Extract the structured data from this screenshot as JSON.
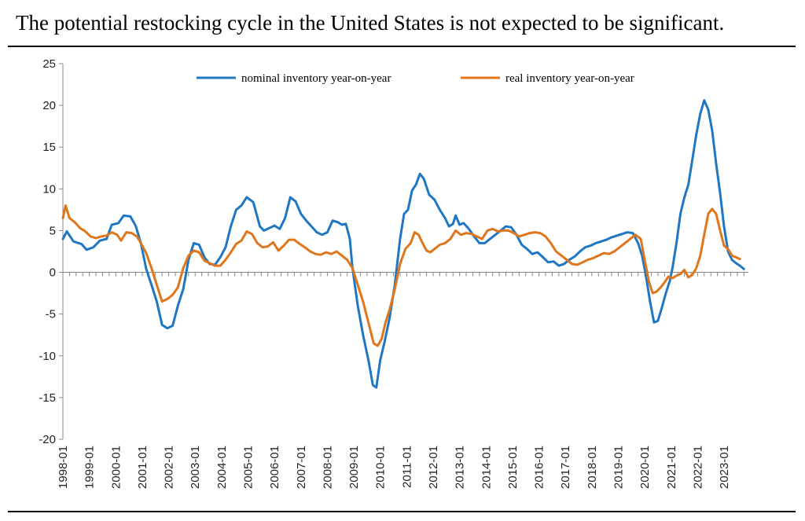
{
  "title": "The potential restocking cycle in the United States is not expected to be significant.",
  "chart_data": {
    "type": "line",
    "title": "",
    "xlabel": "",
    "ylabel": "",
    "ylim": [
      -20,
      25
    ],
    "yticks": [
      -20,
      -15,
      -10,
      -5,
      0,
      5,
      10,
      15,
      20,
      25
    ],
    "xlim": [
      1998.0,
      2023.92
    ],
    "xticks": [
      "1998-01",
      "1999-01",
      "2000-01",
      "2001-01",
      "2002-01",
      "2003-01",
      "2004-01",
      "2005-01",
      "2006-01",
      "2007-01",
      "2008-01",
      "2009-01",
      "2010-01",
      "2011-01",
      "2012-01",
      "2013-01",
      "2014-01",
      "2015-01",
      "2016-01",
      "2017-01",
      "2018-01",
      "2019-01",
      "2020-01",
      "2021-01",
      "2022-01",
      "2023-01"
    ],
    "legend_position": "top-center",
    "grid": false,
    "series": [
      {
        "name": "nominal inventory year-on-year",
        "color": "#1f77c4",
        "points": [
          [
            1998.0,
            4.0
          ],
          [
            1998.15,
            4.9
          ],
          [
            1998.4,
            3.7
          ],
          [
            1998.7,
            3.4
          ],
          [
            1998.9,
            2.7
          ],
          [
            1999.15,
            3.0
          ],
          [
            1999.4,
            3.8
          ],
          [
            1999.65,
            4.0
          ],
          [
            1999.85,
            5.7
          ],
          [
            2000.1,
            5.9
          ],
          [
            2000.3,
            6.8
          ],
          [
            2000.55,
            6.7
          ],
          [
            2000.75,
            5.6
          ],
          [
            2000.95,
            3.5
          ],
          [
            2001.15,
            0.4
          ],
          [
            2001.35,
            -1.5
          ],
          [
            2001.55,
            -3.5
          ],
          [
            2001.75,
            -6.3
          ],
          [
            2001.95,
            -6.7
          ],
          [
            2002.15,
            -6.4
          ],
          [
            2002.35,
            -4.0
          ],
          [
            2002.55,
            -2.0
          ],
          [
            2002.75,
            1.5
          ],
          [
            2002.95,
            3.5
          ],
          [
            2003.15,
            3.3
          ],
          [
            2003.35,
            1.8
          ],
          [
            2003.55,
            1.0
          ],
          [
            2003.75,
            0.9
          ],
          [
            2003.95,
            1.8
          ],
          [
            2004.15,
            3.0
          ],
          [
            2004.35,
            5.5
          ],
          [
            2004.55,
            7.5
          ],
          [
            2004.75,
            8.0
          ],
          [
            2004.95,
            9.0
          ],
          [
            2005.2,
            8.4
          ],
          [
            2005.45,
            5.5
          ],
          [
            2005.6,
            5.0
          ],
          [
            2005.8,
            5.3
          ],
          [
            2006.0,
            5.6
          ],
          [
            2006.2,
            5.2
          ],
          [
            2006.4,
            6.5
          ],
          [
            2006.6,
            9.0
          ],
          [
            2006.8,
            8.5
          ],
          [
            2007.0,
            7.0
          ],
          [
            2007.2,
            6.2
          ],
          [
            2007.4,
            5.5
          ],
          [
            2007.6,
            4.8
          ],
          [
            2007.8,
            4.5
          ],
          [
            2008.0,
            4.8
          ],
          [
            2008.2,
            6.2
          ],
          [
            2008.4,
            6.0
          ],
          [
            2008.55,
            5.7
          ],
          [
            2008.7,
            5.8
          ],
          [
            2008.85,
            4.0
          ],
          [
            2008.95,
            0.5
          ],
          [
            2009.15,
            -4.0
          ],
          [
            2009.35,
            -7.5
          ],
          [
            2009.55,
            -10.5
          ],
          [
            2009.72,
            -13.5
          ],
          [
            2009.85,
            -13.8
          ],
          [
            2010.0,
            -10.5
          ],
          [
            2010.15,
            -8.5
          ],
          [
            2010.35,
            -5.5
          ],
          [
            2010.55,
            -1.5
          ],
          [
            2010.75,
            4.0
          ],
          [
            2010.9,
            7.0
          ],
          [
            2011.05,
            7.5
          ],
          [
            2011.2,
            9.8
          ],
          [
            2011.35,
            10.5
          ],
          [
            2011.5,
            11.8
          ],
          [
            2011.65,
            11.2
          ],
          [
            2011.85,
            9.3
          ],
          [
            2012.05,
            8.7
          ],
          [
            2012.25,
            7.5
          ],
          [
            2012.45,
            6.5
          ],
          [
            2012.6,
            5.5
          ],
          [
            2012.75,
            5.8
          ],
          [
            2012.85,
            6.8
          ],
          [
            2013.0,
            5.7
          ],
          [
            2013.15,
            5.9
          ],
          [
            2013.35,
            5.2
          ],
          [
            2013.55,
            4.3
          ],
          [
            2013.75,
            3.5
          ],
          [
            2013.95,
            3.5
          ],
          [
            2014.15,
            4.0
          ],
          [
            2014.35,
            4.5
          ],
          [
            2014.55,
            5.0
          ],
          [
            2014.75,
            5.5
          ],
          [
            2014.95,
            5.4
          ],
          [
            2015.15,
            4.5
          ],
          [
            2015.35,
            3.3
          ],
          [
            2015.55,
            2.8
          ],
          [
            2015.75,
            2.2
          ],
          [
            2015.95,
            2.4
          ],
          [
            2016.15,
            1.8
          ],
          [
            2016.35,
            1.2
          ],
          [
            2016.55,
            1.3
          ],
          [
            2016.75,
            0.8
          ],
          [
            2016.95,
            1.0
          ],
          [
            2017.15,
            1.5
          ],
          [
            2017.35,
            1.9
          ],
          [
            2017.55,
            2.5
          ],
          [
            2017.75,
            3.0
          ],
          [
            2017.95,
            3.2
          ],
          [
            2018.15,
            3.5
          ],
          [
            2018.35,
            3.7
          ],
          [
            2018.55,
            3.9
          ],
          [
            2018.75,
            4.2
          ],
          [
            2018.95,
            4.4
          ],
          [
            2019.15,
            4.6
          ],
          [
            2019.35,
            4.8
          ],
          [
            2019.55,
            4.7
          ],
          [
            2019.75,
            3.5
          ],
          [
            2019.9,
            2.0
          ],
          [
            2020.05,
            -0.5
          ],
          [
            2020.2,
            -3.5
          ],
          [
            2020.35,
            -6.0
          ],
          [
            2020.5,
            -5.8
          ],
          [
            2020.65,
            -4.2
          ],
          [
            2020.8,
            -2.5
          ],
          [
            2020.95,
            -1.0
          ],
          [
            2021.05,
            0.5
          ],
          [
            2021.2,
            3.5
          ],
          [
            2021.35,
            7.0
          ],
          [
            2021.5,
            9.0
          ],
          [
            2021.65,
            10.5
          ],
          [
            2021.8,
            13.5
          ],
          [
            2021.95,
            16.5
          ],
          [
            2022.1,
            19.0
          ],
          [
            2022.25,
            20.6
          ],
          [
            2022.4,
            19.5
          ],
          [
            2022.55,
            17.0
          ],
          [
            2022.7,
            13.0
          ],
          [
            2022.85,
            9.5
          ],
          [
            2023.0,
            5.5
          ],
          [
            2023.15,
            2.5
          ],
          [
            2023.3,
            1.5
          ],
          [
            2023.45,
            1.1
          ],
          [
            2023.6,
            0.8
          ],
          [
            2023.75,
            0.4
          ]
        ]
      },
      {
        "name": "real inventory year-on-year",
        "color": "#e0761c",
        "points": [
          [
            1998.0,
            6.5
          ],
          [
            1998.1,
            8.0
          ],
          [
            1998.25,
            6.5
          ],
          [
            1998.45,
            6.0
          ],
          [
            1998.65,
            5.3
          ],
          [
            1998.85,
            4.9
          ],
          [
            1999.05,
            4.3
          ],
          [
            1999.25,
            4.1
          ],
          [
            1999.45,
            4.3
          ],
          [
            1999.65,
            4.4
          ],
          [
            1999.85,
            4.8
          ],
          [
            2000.05,
            4.5
          ],
          [
            2000.2,
            3.8
          ],
          [
            2000.4,
            4.8
          ],
          [
            2000.6,
            4.7
          ],
          [
            2000.8,
            4.3
          ],
          [
            2000.95,
            3.5
          ],
          [
            2001.15,
            2.3
          ],
          [
            2001.35,
            0.5
          ],
          [
            2001.55,
            -1.5
          ],
          [
            2001.75,
            -3.5
          ],
          [
            2001.95,
            -3.2
          ],
          [
            2002.15,
            -2.7
          ],
          [
            2002.35,
            -1.8
          ],
          [
            2002.55,
            0.5
          ],
          [
            2002.75,
            2.0
          ],
          [
            2002.95,
            2.6
          ],
          [
            2003.15,
            2.4
          ],
          [
            2003.35,
            1.4
          ],
          [
            2003.55,
            1.1
          ],
          [
            2003.75,
            0.8
          ],
          [
            2003.95,
            0.8
          ],
          [
            2004.15,
            1.5
          ],
          [
            2004.35,
            2.4
          ],
          [
            2004.55,
            3.4
          ],
          [
            2004.75,
            3.8
          ],
          [
            2004.95,
            4.9
          ],
          [
            2005.15,
            4.6
          ],
          [
            2005.35,
            3.5
          ],
          [
            2005.55,
            3.0
          ],
          [
            2005.75,
            3.1
          ],
          [
            2005.95,
            3.6
          ],
          [
            2006.15,
            2.6
          ],
          [
            2006.35,
            3.2
          ],
          [
            2006.55,
            3.9
          ],
          [
            2006.75,
            3.9
          ],
          [
            2006.95,
            3.4
          ],
          [
            2007.15,
            3.0
          ],
          [
            2007.35,
            2.5
          ],
          [
            2007.55,
            2.2
          ],
          [
            2007.75,
            2.1
          ],
          [
            2007.95,
            2.4
          ],
          [
            2008.15,
            2.2
          ],
          [
            2008.35,
            2.5
          ],
          [
            2008.55,
            2.0
          ],
          [
            2008.75,
            1.5
          ],
          [
            2008.95,
            0.5
          ],
          [
            2009.15,
            -1.5
          ],
          [
            2009.35,
            -3.5
          ],
          [
            2009.55,
            -6.0
          ],
          [
            2009.75,
            -8.5
          ],
          [
            2009.9,
            -8.8
          ],
          [
            2010.05,
            -8.0
          ],
          [
            2010.2,
            -6.0
          ],
          [
            2010.35,
            -4.5
          ],
          [
            2010.55,
            -2.0
          ],
          [
            2010.75,
            1.0
          ],
          [
            2010.95,
            2.8
          ],
          [
            2011.15,
            3.5
          ],
          [
            2011.3,
            4.8
          ],
          [
            2011.45,
            4.5
          ],
          [
            2011.6,
            3.5
          ],
          [
            2011.75,
            2.6
          ],
          [
            2011.9,
            2.4
          ],
          [
            2012.05,
            2.8
          ],
          [
            2012.25,
            3.3
          ],
          [
            2012.45,
            3.5
          ],
          [
            2012.65,
            4.0
          ],
          [
            2012.85,
            5.0
          ],
          [
            2013.05,
            4.5
          ],
          [
            2013.25,
            4.7
          ],
          [
            2013.45,
            4.6
          ],
          [
            2013.65,
            4.3
          ],
          [
            2013.85,
            4.0
          ],
          [
            2014.05,
            5.0
          ],
          [
            2014.25,
            5.2
          ],
          [
            2014.45,
            4.9
          ],
          [
            2014.65,
            5.0
          ],
          [
            2014.85,
            5.0
          ],
          [
            2015.05,
            4.7
          ],
          [
            2015.25,
            4.3
          ],
          [
            2015.45,
            4.5
          ],
          [
            2015.65,
            4.7
          ],
          [
            2015.85,
            4.8
          ],
          [
            2016.05,
            4.7
          ],
          [
            2016.25,
            4.3
          ],
          [
            2016.45,
            3.5
          ],
          [
            2016.65,
            2.5
          ],
          [
            2016.85,
            2.0
          ],
          [
            2017.05,
            1.5
          ],
          [
            2017.25,
            1.0
          ],
          [
            2017.45,
            0.9
          ],
          [
            2017.65,
            1.2
          ],
          [
            2017.85,
            1.5
          ],
          [
            2018.05,
            1.7
          ],
          [
            2018.25,
            2.0
          ],
          [
            2018.45,
            2.3
          ],
          [
            2018.65,
            2.2
          ],
          [
            2018.85,
            2.5
          ],
          [
            2019.05,
            3.0
          ],
          [
            2019.25,
            3.5
          ],
          [
            2019.45,
            4.0
          ],
          [
            2019.65,
            4.5
          ],
          [
            2019.85,
            4.0
          ],
          [
            2020.0,
            1.5
          ],
          [
            2020.15,
            -1.0
          ],
          [
            2020.3,
            -2.5
          ],
          [
            2020.45,
            -2.3
          ],
          [
            2020.6,
            -1.8
          ],
          [
            2020.75,
            -1.2
          ],
          [
            2020.9,
            -0.5
          ],
          [
            2021.05,
            -0.7
          ],
          [
            2021.2,
            -0.4
          ],
          [
            2021.35,
            -0.2
          ],
          [
            2021.5,
            0.3
          ],
          [
            2021.65,
            -0.6
          ],
          [
            2021.8,
            -0.3
          ],
          [
            2021.95,
            0.5
          ],
          [
            2022.1,
            2.0
          ],
          [
            2022.25,
            4.5
          ],
          [
            2022.4,
            7.0
          ],
          [
            2022.55,
            7.6
          ],
          [
            2022.7,
            7.0
          ],
          [
            2022.85,
            5.0
          ],
          [
            2023.0,
            3.2
          ],
          [
            2023.15,
            2.8
          ],
          [
            2023.3,
            2.0
          ],
          [
            2023.45,
            1.8
          ],
          [
            2023.6,
            1.6
          ]
        ]
      }
    ]
  }
}
